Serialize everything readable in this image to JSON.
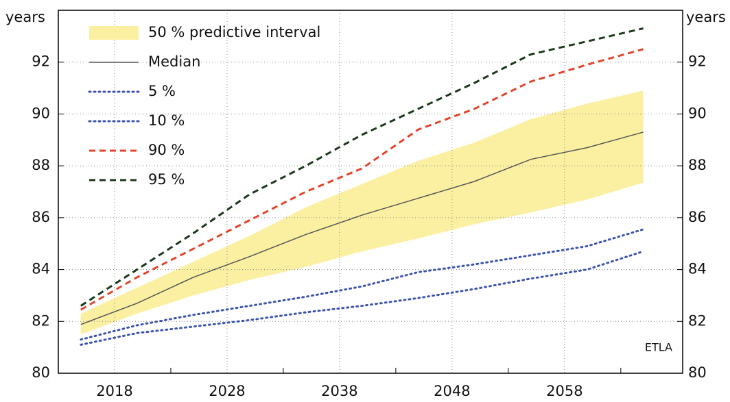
{
  "chart_data": {
    "type": "line",
    "ylabel": "years",
    "y2label": "years",
    "annotation": "ETLA",
    "x": [
      2015,
      2020,
      2025,
      2030,
      2035,
      2040,
      2045,
      2050,
      2055,
      2060,
      2065
    ],
    "band": {
      "name": "50 % predictive interval",
      "color": "#fbf0a2",
      "upper": [
        82.3,
        83.3,
        84.3,
        85.3,
        86.4,
        87.3,
        88.2,
        88.9,
        89.8,
        90.4,
        90.9
      ],
      "lower": [
        81.5,
        82.3,
        83.0,
        83.6,
        84.1,
        84.7,
        85.2,
        85.75,
        86.2,
        86.7,
        87.35
      ]
    },
    "series": [
      {
        "name": "Median",
        "color": "#555555",
        "dash": "solid",
        "values": [
          81.88,
          82.7,
          83.7,
          84.5,
          85.35,
          86.1,
          86.75,
          87.4,
          88.25,
          88.7,
          89.3
        ]
      },
      {
        "name": "5 %",
        "color": "#3b53b0",
        "dash": "dotted",
        "values": [
          81.1,
          81.55,
          81.8,
          82.05,
          82.35,
          82.6,
          82.9,
          83.25,
          83.65,
          84.0,
          84.7
        ]
      },
      {
        "name": "10 %",
        "color": "#3b53b0",
        "dash": "dotted",
        "values": [
          81.3,
          81.85,
          82.25,
          82.6,
          82.95,
          83.35,
          83.9,
          84.2,
          84.55,
          84.9,
          85.55
        ]
      },
      {
        "name": "90 %",
        "color": "#e2452a",
        "dash": "dashed",
        "values": [
          82.45,
          83.7,
          84.8,
          85.9,
          87.0,
          87.9,
          89.4,
          90.2,
          91.25,
          91.9,
          92.5
        ]
      },
      {
        "name": "95 %",
        "color": "#1a3a1a",
        "dash": "dashed",
        "values": [
          82.6,
          84.0,
          85.4,
          86.9,
          88.0,
          89.2,
          90.2,
          91.2,
          92.3,
          92.8,
          93.3
        ]
      }
    ],
    "xlim": [
      2013,
      2068.5
    ],
    "xticks": [
      2018,
      2028,
      2038,
      2048,
      2058
    ],
    "xminorticks": [
      2023,
      2033,
      2043,
      2053,
      2063
    ],
    "ylim": [
      80,
      94
    ],
    "yticks": [
      80,
      82,
      84,
      86,
      88,
      90,
      92
    ],
    "y2lim": [
      80,
      94
    ],
    "y2ticks": [
      80,
      82,
      84,
      86,
      88,
      90,
      92
    ],
    "grid": true,
    "legend": "upper left"
  }
}
